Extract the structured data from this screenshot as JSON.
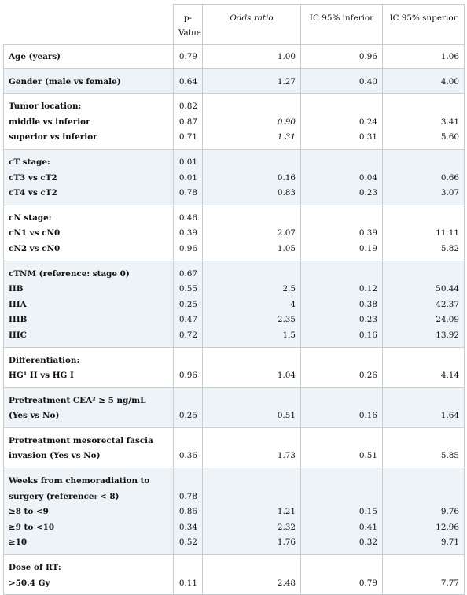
{
  "table": {
    "headers": [
      "",
      "p-\nValue",
      "Odds ratio",
      "IC 95% inferior",
      "IC 95% superior"
    ],
    "rows": [
      {
        "label": [
          "Age (years)"
        ],
        "p": [
          "0.79"
        ],
        "or": [
          "1.00"
        ],
        "lo": [
          "0.96"
        ],
        "hi": [
          "1.06"
        ]
      },
      {
        "label": [
          "Gender (male vs female)"
        ],
        "p": [
          "0.64"
        ],
        "or": [
          "1.27"
        ],
        "lo": [
          "0.40"
        ],
        "hi": [
          "4.00"
        ]
      },
      {
        "label": [
          "Tumor location:",
          "middle vs inferior",
          "superior vs inferior"
        ],
        "p": [
          "0.82",
          "0.87",
          "0.71"
        ],
        "or": [
          "",
          "0.90",
          "1.31"
        ],
        "lo": [
          "",
          "0.24",
          "0.31"
        ],
        "hi": [
          "",
          "3.41",
          "5.60"
        ]
      },
      {
        "label": [
          "cT stage:",
          "cT3 vs cT2",
          "cT4 vs cT2"
        ],
        "p": [
          "0.01",
          "0.01",
          "0.78"
        ],
        "or": [
          "",
          "0.16",
          "0.83"
        ],
        "lo": [
          "",
          "0.04",
          "0.23"
        ],
        "hi": [
          "",
          "0.66",
          "3.07"
        ]
      },
      {
        "label": [
          "cN stage:",
          "cN1 vs cN0",
          "cN2 vs cN0"
        ],
        "p": [
          "0.46",
          "0.39",
          "0.96"
        ],
        "or": [
          "",
          "2.07",
          "1.05"
        ],
        "lo": [
          "",
          "0.39",
          "0.19"
        ],
        "hi": [
          "",
          "11.11",
          "5.82"
        ]
      },
      {
        "label": [
          "cTNM (reference: stage 0)",
          "IIB",
          "IIIA",
          "IIIB",
          "IIIC"
        ],
        "p": [
          "0.67",
          "0.55",
          "0.25",
          "0.47",
          "0.72"
        ],
        "or": [
          "",
          "2.5",
          "4",
          "2.35",
          "1.5"
        ],
        "lo": [
          "",
          "0.12",
          "0.38",
          "0.23",
          "0.16"
        ],
        "hi": [
          "",
          "50.44",
          "42.37",
          "24.09",
          "13.92"
        ]
      },
      {
        "label": [
          "Differentiation:",
          "HG¹ II vs HG I"
        ],
        "p": [
          "",
          "0.96"
        ],
        "or": [
          "",
          "1.04"
        ],
        "lo": [
          "",
          "0.26"
        ],
        "hi": [
          "",
          "4.14"
        ]
      },
      {
        "label": [
          "Pretreatment CEA² ≥ 5 ng/mL",
          "(Yes vs No)"
        ],
        "p": [
          "",
          "0.25"
        ],
        "or": [
          "",
          "0.51"
        ],
        "lo": [
          "",
          "0.16"
        ],
        "hi": [
          "",
          "1.64"
        ]
      },
      {
        "label": [
          "Pretreatment mesorectal fascia",
          "invasion (Yes vs No)"
        ],
        "p": [
          "",
          "0.36"
        ],
        "or": [
          "",
          "1.73"
        ],
        "lo": [
          "",
          "0.51"
        ],
        "hi": [
          "",
          "5.85"
        ]
      },
      {
        "label": [
          "Weeks from chemoradiation to",
          "surgery (reference: < 8)",
          "≥8 to <9",
          "≥9 to <10",
          "≥10"
        ],
        "p": [
          "",
          "0.78",
          "0.86",
          "0.34",
          "0.52"
        ],
        "or": [
          "",
          "",
          "1.21",
          "2.32",
          "1.76"
        ],
        "lo": [
          "",
          "",
          "0.15",
          "0.41",
          "0.32"
        ],
        "hi": [
          "",
          "",
          "9.76",
          "12.96",
          "9.71"
        ]
      },
      {
        "label": [
          "Dose of RT:",
          ">50.4 Gy"
        ],
        "p": [
          "",
          "0.11"
        ],
        "or": [
          "",
          "2.48"
        ],
        "lo": [
          "",
          "0.79"
        ],
        "hi": [
          "",
          "7.77"
        ]
      }
    ]
  }
}
